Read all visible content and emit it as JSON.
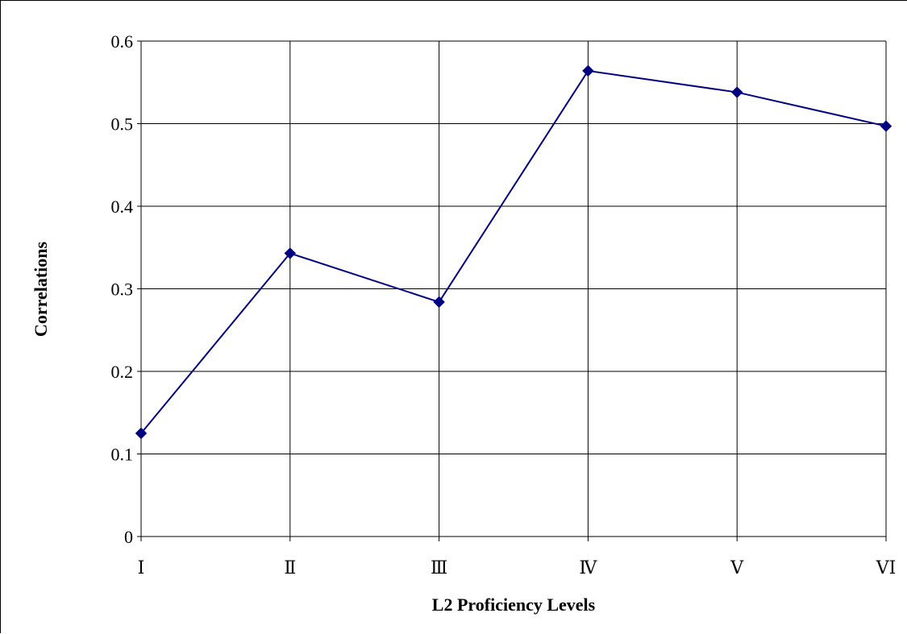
{
  "chart_data": {
    "type": "line",
    "title": "",
    "xlabel": "L2 Proficiency Levels",
    "ylabel": "Correlations",
    "categories": [
      "Ⅰ",
      "Ⅱ",
      "Ⅲ",
      "Ⅳ",
      "Ⅴ",
      "ⅤⅠ"
    ],
    "series": [
      {
        "values": [
          0.125,
          0.343,
          0.284,
          0.564,
          0.538,
          0.497
        ],
        "color": "#000080",
        "marker": "diamond"
      }
    ],
    "ylim": [
      0,
      0.6
    ],
    "yticks": [
      "0",
      "0.1",
      "0.2",
      "0.3",
      "0.4",
      "0.5",
      "0.6"
    ],
    "grid": true,
    "legend": "none"
  }
}
